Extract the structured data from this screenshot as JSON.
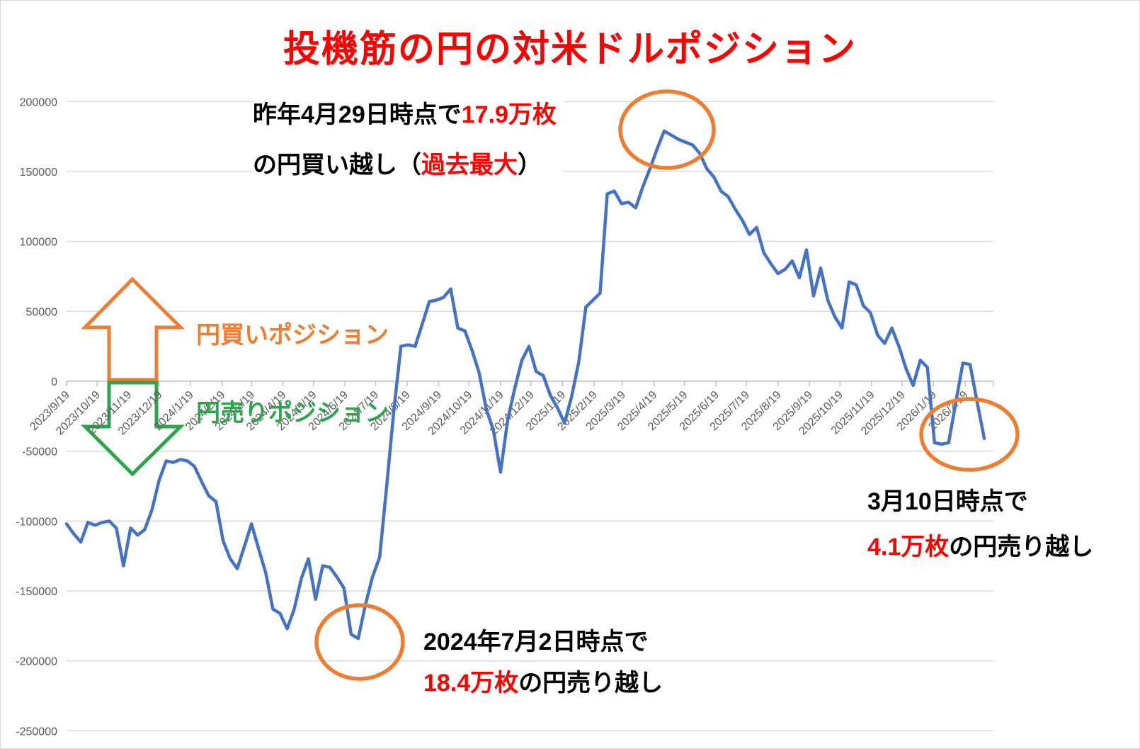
{
  "title": "投機筋の円の対米ドルポジション",
  "colors": {
    "background": "#FFFFFF",
    "line": "#4472C4",
    "grid": "#D9D9D9",
    "axis": "#BFBFBF",
    "tick_label": "#595959",
    "red": "#FF0000",
    "orange": "#ED7D31",
    "green": "#2EA44F",
    "black": "#000000"
  },
  "chart_data": {
    "type": "line",
    "title": "投機筋の円の対米ドルポジション",
    "x_axis": {
      "start": "2023/9/19",
      "end": "2026/3/19",
      "labels": [
        "2023/9/19",
        "2023/10/19",
        "2023/11/19",
        "2023/12/19",
        "2024/1/19",
        "2024/2/19",
        "2024/3/19",
        "2024/4/19",
        "2024/5/19",
        "2024/6/19",
        "2024/7/19",
        "2024/8/19",
        "2024/9/19",
        "2024/10/19",
        "2024/11/19",
        "2024/12/19",
        "2025/1/19",
        "2025/2/19",
        "2025/3/19",
        "2025/4/19",
        "2025/5/19",
        "2025/6/19",
        "2025/7/19",
        "2025/8/19",
        "2025/9/19",
        "2025/10/19",
        "2025/11/19",
        "2025/12/19",
        "2026/1/19",
        "2026/2/19"
      ]
    },
    "y_axis": {
      "min": -250000,
      "max": 200000,
      "ticks": [
        200000,
        150000,
        100000,
        50000,
        0,
        -50000,
        -100000,
        -150000,
        -200000,
        -250000
      ],
      "gridlines": true
    },
    "series": [
      {
        "color": "#4472C4",
        "points": [
          [
            "2023/9/19",
            -102000
          ],
          [
            "2023/9/26",
            -109000
          ],
          [
            "2023/10/3",
            -115000
          ],
          [
            "2023/10/10",
            -101000
          ],
          [
            "2023/10/17",
            -103000
          ],
          [
            "2023/10/24",
            -101000
          ],
          [
            "2023/10/31",
            -100000
          ],
          [
            "2023/11/7",
            -105000
          ],
          [
            "2023/11/14",
            -132000
          ],
          [
            "2023/11/21",
            -105000
          ],
          [
            "2023/11/28",
            -110000
          ],
          [
            "2023/12/5",
            -106000
          ],
          [
            "2023/12/12",
            -92000
          ],
          [
            "2023/12/19",
            -71000
          ],
          [
            "2023/12/26",
            -57000
          ],
          [
            "2024/1/2",
            -58000
          ],
          [
            "2024/1/9",
            -56000
          ],
          [
            "2024/1/16",
            -57000
          ],
          [
            "2024/1/23",
            -61000
          ],
          [
            "2024/1/30",
            -72000
          ],
          [
            "2024/2/6",
            -82000
          ],
          [
            "2024/2/13",
            -86000
          ],
          [
            "2024/2/20",
            -114000
          ],
          [
            "2024/2/27",
            -127000
          ],
          [
            "2024/3/5",
            -134000
          ],
          [
            "2024/3/12",
            -118000
          ],
          [
            "2024/3/19",
            -102000
          ],
          [
            "2024/3/26",
            -120000
          ],
          [
            "2024/4/2",
            -137000
          ],
          [
            "2024/4/9",
            -163000
          ],
          [
            "2024/4/16",
            -166000
          ],
          [
            "2024/4/23",
            -177000
          ],
          [
            "2024/4/30",
            -163000
          ],
          [
            "2024/5/7",
            -141000
          ],
          [
            "2024/5/14",
            -127000
          ],
          [
            "2024/5/21",
            -156000
          ],
          [
            "2024/5/28",
            -132000
          ],
          [
            "2024/6/4",
            -133000
          ],
          [
            "2024/6/11",
            -140000
          ],
          [
            "2024/6/18",
            -148000
          ],
          [
            "2024/6/25",
            -181000
          ],
          [
            "2024/7/2",
            -184000
          ],
          [
            "2024/7/9",
            -160000
          ],
          [
            "2024/7/16",
            -140000
          ],
          [
            "2024/7/23",
            -126000
          ],
          [
            "2024/7/30",
            -75000
          ],
          [
            "2024/8/6",
            -21000
          ],
          [
            "2024/8/13",
            25000
          ],
          [
            "2024/8/20",
            26000
          ],
          [
            "2024/8/27",
            25000
          ],
          [
            "2024/9/3",
            41000
          ],
          [
            "2024/9/10",
            57000
          ],
          [
            "2024/9/17",
            58000
          ],
          [
            "2024/9/24",
            60000
          ],
          [
            "2024/10/1",
            66000
          ],
          [
            "2024/10/8",
            38000
          ],
          [
            "2024/10/15",
            36000
          ],
          [
            "2024/10/22",
            22000
          ],
          [
            "2024/10/29",
            6000
          ],
          [
            "2024/11/5",
            -20000
          ],
          [
            "2024/11/12",
            -35000
          ],
          [
            "2024/11/19",
            -65000
          ],
          [
            "2024/11/26",
            -28000
          ],
          [
            "2024/12/3",
            -5000
          ],
          [
            "2024/12/10",
            15000
          ],
          [
            "2024/12/17",
            25000
          ],
          [
            "2024/12/24",
            7000
          ],
          [
            "2024/12/31",
            4000
          ],
          [
            "2025/1/7",
            -10000
          ],
          [
            "2025/1/14",
            -19000
          ],
          [
            "2025/1/21",
            -30000
          ],
          [
            "2025/1/28",
            -11000
          ],
          [
            "2025/2/4",
            14000
          ],
          [
            "2025/2/11",
            53000
          ],
          [
            "2025/2/18",
            58000
          ],
          [
            "2025/2/25",
            63000
          ],
          [
            "2025/3/4",
            134000
          ],
          [
            "2025/3/11",
            136000
          ],
          [
            "2025/3/18",
            127000
          ],
          [
            "2025/3/25",
            128000
          ],
          [
            "2025/4/1",
            124000
          ],
          [
            "2025/4/8",
            139000
          ],
          [
            "2025/4/15",
            152000
          ],
          [
            "2025/4/22",
            166000
          ],
          [
            "2025/4/29",
            179000
          ],
          [
            "2025/5/6",
            176000
          ],
          [
            "2025/5/13",
            173000
          ],
          [
            "2025/5/20",
            171000
          ],
          [
            "2025/5/27",
            169000
          ],
          [
            "2025/6/3",
            163000
          ],
          [
            "2025/6/10",
            152000
          ],
          [
            "2025/6/17",
            146000
          ],
          [
            "2025/6/24",
            136000
          ],
          [
            "2025/7/1",
            132000
          ],
          [
            "2025/7/8",
            123000
          ],
          [
            "2025/7/15",
            115000
          ],
          [
            "2025/7/22",
            105000
          ],
          [
            "2025/7/29",
            110000
          ],
          [
            "2025/8/5",
            92000
          ],
          [
            "2025/8/12",
            84000
          ],
          [
            "2025/8/19",
            77000
          ],
          [
            "2025/8/26",
            80000
          ],
          [
            "2025/9/2",
            86000
          ],
          [
            "2025/9/9",
            74000
          ],
          [
            "2025/9/16",
            94000
          ],
          [
            "2025/9/23",
            61000
          ],
          [
            "2025/9/30",
            81000
          ],
          [
            "2025/10/7",
            58000
          ],
          [
            "2025/10/14",
            46000
          ],
          [
            "2025/10/21",
            38000
          ],
          [
            "2025/10/28",
            71000
          ],
          [
            "2025/11/4",
            69000
          ],
          [
            "2025/11/11",
            54000
          ],
          [
            "2025/11/18",
            49000
          ],
          [
            "2025/11/25",
            33000
          ],
          [
            "2025/12/2",
            27000
          ],
          [
            "2025/12/9",
            38000
          ],
          [
            "2025/12/16",
            25000
          ],
          [
            "2025/12/23",
            9000
          ],
          [
            "2025/12/30",
            -3000
          ],
          [
            "2026/1/6",
            15000
          ],
          [
            "2026/1/13",
            10000
          ],
          [
            "2026/1/20",
            -44000
          ],
          [
            "2026/1/27",
            -45000
          ],
          [
            "2026/2/3",
            -44000
          ],
          [
            "2026/2/10",
            -15000
          ],
          [
            "2026/2/17",
            13000
          ],
          [
            "2026/2/24",
            12000
          ],
          [
            "2026/3/3",
            -15000
          ],
          [
            "2026/3/10",
            -41000
          ]
        ]
      }
    ],
    "highlight_circles": [
      "2025/4/29 peak",
      "2024/7/2 trough",
      "2026/3/10 latest"
    ]
  },
  "annotations": {
    "peak": {
      "line1_black": "昨年4月29日時点で",
      "line1_red": "17.9万枚",
      "line2_black1": "の円買い越し（",
      "line2_red": "過去最大",
      "line2_black2": "）"
    },
    "trough": {
      "line1": "2024年7月2日時点で",
      "line2_red": "18.4万枚",
      "line2_black": "の円売り越し"
    },
    "latest": {
      "line1": "3月10日時点で",
      "line2_red": "4.1万枚",
      "line2_black": "の円売り越し"
    },
    "buy_position_label": "円買いポジション",
    "sell_position_label": "円売りポジション"
  }
}
